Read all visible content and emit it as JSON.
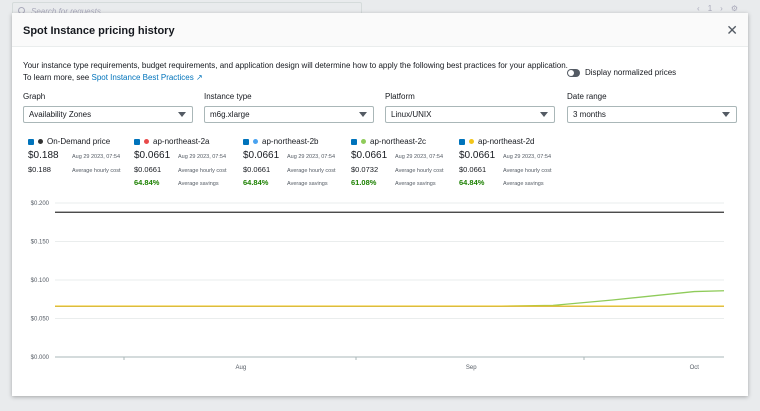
{
  "background": {
    "search_placeholder": "Search for requests",
    "page": "1"
  },
  "modal": {
    "title": "Spot Instance pricing history",
    "intro_line1": "Your instance type requirements, budget requirements, and application design will determine how to apply the following best practices for your application.",
    "intro_line2": "To learn more, see ",
    "link": "Spot Instance Best Practices",
    "toggle_label": "Display normalized prices"
  },
  "filters": [
    {
      "label": "Graph",
      "value": "Availability Zones"
    },
    {
      "label": "Instance type",
      "value": "m6g.xlarge"
    },
    {
      "label": "Platform",
      "value": "Linux/UNIX"
    },
    {
      "label": "Date range",
      "value": "3 months"
    }
  ],
  "legend": [
    {
      "name": "On-Demand price",
      "color": "#333333",
      "price": "$0.188",
      "time": "Aug 29 2023, 07:54",
      "avg": "$0.188",
      "avg_label": "Average hourly cost",
      "savings": "",
      "savings_label": ""
    },
    {
      "name": "ap-northeast-2a",
      "color": "#e84a4a",
      "price": "$0.0661",
      "time": "Aug 29 2023, 07:54",
      "avg": "$0.0661",
      "avg_label": "Average hourly cost",
      "savings": "64.84%",
      "savings_label": "Average savings"
    },
    {
      "name": "ap-northeast-2b",
      "color": "#4aa3f0",
      "price": "$0.0661",
      "time": "Aug 29 2023, 07:54",
      "avg": "$0.0661",
      "avg_label": "Average hourly cost",
      "savings": "64.84%",
      "savings_label": "Average savings"
    },
    {
      "name": "ap-northeast-2c",
      "color": "#8fcb5a",
      "price": "$0.0661",
      "time": "Aug 29 2023, 07:54",
      "avg": "$0.0732",
      "avg_label": "Average hourly cost",
      "savings": "61.08%",
      "savings_label": "Average savings"
    },
    {
      "name": "ap-northeast-2d",
      "color": "#f2c51a",
      "price": "$0.0661",
      "time": "Aug 29 2023, 07:54",
      "avg": "$0.0661",
      "avg_label": "Average hourly cost",
      "savings": "64.84%",
      "savings_label": "Average savings"
    }
  ],
  "chart_data": {
    "type": "line",
    "xlim": [
      "2023-07-07",
      "2023-10-05"
    ],
    "ylim": [
      0,
      0.2
    ],
    "yticks": [
      "$0.000",
      "$0.050",
      "$0.100",
      "$0.150",
      "$0.200"
    ],
    "yvals": [
      0,
      0.05,
      0.1,
      0.15,
      0.2
    ],
    "xticks": [
      {
        "label": "Aug",
        "date": "2023-08-01"
      },
      {
        "label": "Sep",
        "date": "2023-09-01"
      },
      {
        "label": "Oct",
        "date": "2023-10-01"
      }
    ],
    "grid": true,
    "series": [
      {
        "name": "On-Demand price",
        "color": "#333333",
        "points": [
          [
            "2023-07-07",
            0.188
          ],
          [
            "2023-10-05",
            0.188
          ]
        ]
      },
      {
        "name": "ap-northeast-2c",
        "color": "#8fcb5a",
        "points": [
          [
            "2023-07-07",
            0.0661
          ],
          [
            "2023-09-05",
            0.0661
          ],
          [
            "2023-09-12",
            0.067
          ],
          [
            "2023-09-20",
            0.074
          ],
          [
            "2023-10-01",
            0.085
          ],
          [
            "2023-10-05",
            0.086
          ]
        ]
      },
      {
        "name": "ap-northeast-2a",
        "color": "#e84a4a",
        "points": [
          [
            "2023-07-07",
            0.0661
          ],
          [
            "2023-10-05",
            0.0661
          ]
        ]
      },
      {
        "name": "ap-northeast-2b",
        "color": "#4aa3f0",
        "points": [
          [
            "2023-07-07",
            0.0661
          ],
          [
            "2023-10-05",
            0.0661
          ]
        ]
      },
      {
        "name": "ap-northeast-2d",
        "color": "#f2c51a",
        "points": [
          [
            "2023-07-07",
            0.0661
          ],
          [
            "2023-10-05",
            0.0661
          ]
        ]
      }
    ]
  }
}
